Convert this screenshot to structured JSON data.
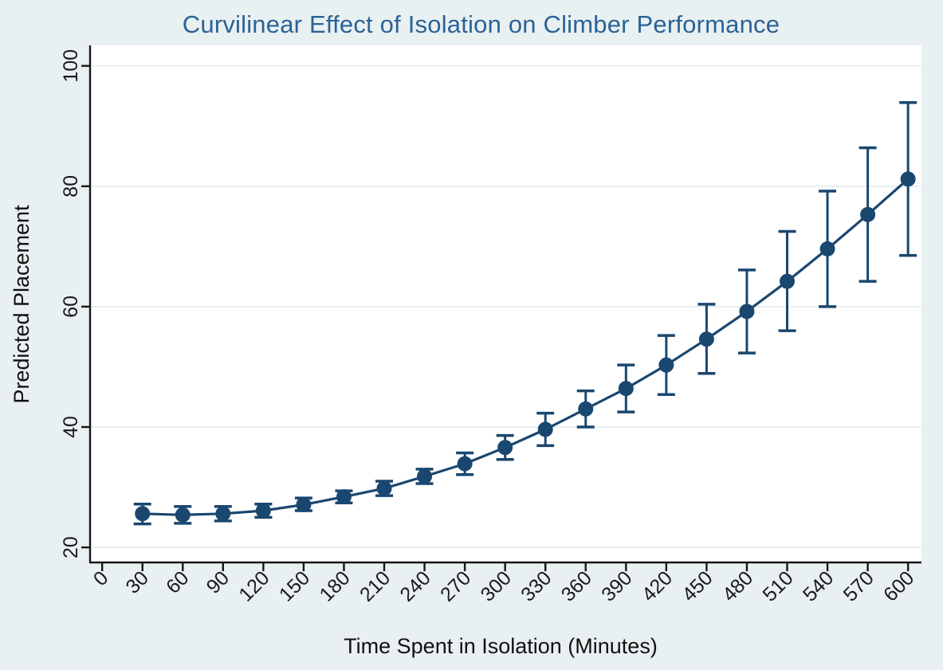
{
  "chart_data": {
    "type": "line",
    "title": "Curvilinear Effect of Isolation on Climber Performance",
    "xlabel": "Time Spent in Isolation (Minutes)",
    "ylabel": "Predicted Placement",
    "x_ticks": [
      0,
      30,
      60,
      90,
      120,
      150,
      180,
      210,
      240,
      270,
      300,
      330,
      360,
      390,
      420,
      450,
      480,
      510,
      540,
      570,
      600
    ],
    "y_ticks": [
      20,
      40,
      60,
      80,
      100
    ],
    "xlim": [
      -9,
      610
    ],
    "ylim": [
      17.5,
      103.4
    ],
    "grid": "horizontal",
    "legend_position": "none",
    "x": [
      30,
      60,
      90,
      120,
      150,
      180,
      210,
      240,
      270,
      300,
      330,
      360,
      390,
      420,
      450,
      480,
      510,
      540,
      570,
      600
    ],
    "series": [
      {
        "name": "Predicted Placement",
        "marker": "circle",
        "values": [
          25.6,
          25.4,
          25.6,
          26.1,
          27.1,
          28.4,
          29.8,
          31.8,
          33.9,
          36.6,
          39.6,
          43.0,
          46.4,
          50.3,
          54.6,
          59.2,
          64.2,
          69.6,
          75.3,
          81.2
        ],
        "ci_lower": [
          23.9,
          24.0,
          24.4,
          25.0,
          26.1,
          27.4,
          28.6,
          30.6,
          32.1,
          34.6,
          36.9,
          40.0,
          42.5,
          45.4,
          48.9,
          52.3,
          56.0,
          60.0,
          64.2,
          68.5
        ],
        "ci_upper": [
          27.2,
          26.8,
          26.8,
          27.2,
          28.2,
          29.4,
          31.0,
          33.0,
          35.7,
          38.6,
          42.3,
          46.0,
          50.3,
          55.2,
          60.4,
          66.1,
          72.5,
          79.2,
          86.4,
          93.9
        ]
      }
    ],
    "colors": {
      "line": "#1a476f",
      "marker": "#1a476f",
      "error_bar": "#1a476f",
      "title": "#2b6397",
      "background": "#e9f0f2",
      "plot_background": "#ffffff",
      "gridline": "#e2ecef",
      "axis": "#161616",
      "tick_label": "#1a1a1a",
      "axis_label": "#111111"
    }
  }
}
